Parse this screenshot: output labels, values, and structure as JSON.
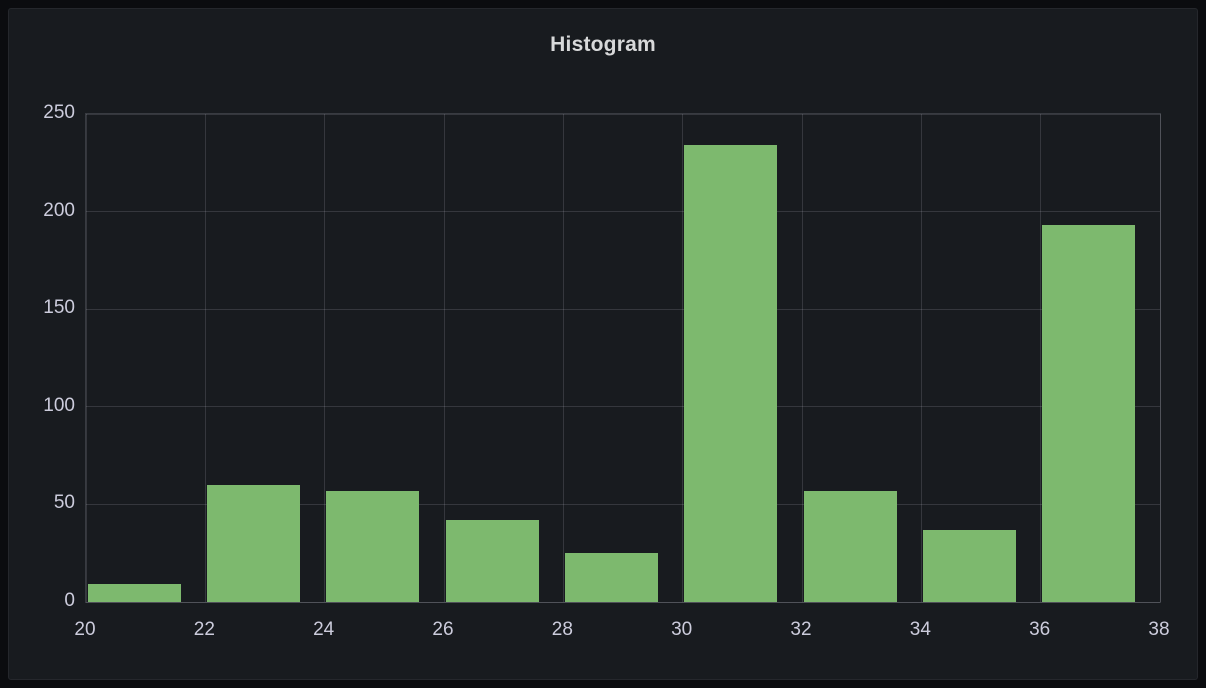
{
  "panel": {
    "title": "Histogram"
  },
  "chart_data": {
    "type": "bar",
    "title": "Histogram",
    "xlabel": "",
    "ylabel": "",
    "categories": [
      20,
      22,
      24,
      26,
      28,
      30,
      32,
      34,
      36
    ],
    "values": [
      9,
      60,
      57,
      42,
      25,
      234,
      57,
      37,
      193
    ],
    "bin_width": 2,
    "x_ticks": [
      20,
      22,
      24,
      26,
      28,
      30,
      32,
      34,
      36,
      38
    ],
    "y_ticks": [
      0,
      50,
      100,
      150,
      200,
      250
    ],
    "xlim": [
      20,
      38
    ],
    "ylim": [
      0,
      250
    ],
    "grid": true,
    "legend": "none",
    "bar_color": "#7db96e",
    "panel_background": "#181b1f",
    "grid_color": "rgba(204,204,220,0.16)",
    "text_color": "#ccccdc"
  }
}
